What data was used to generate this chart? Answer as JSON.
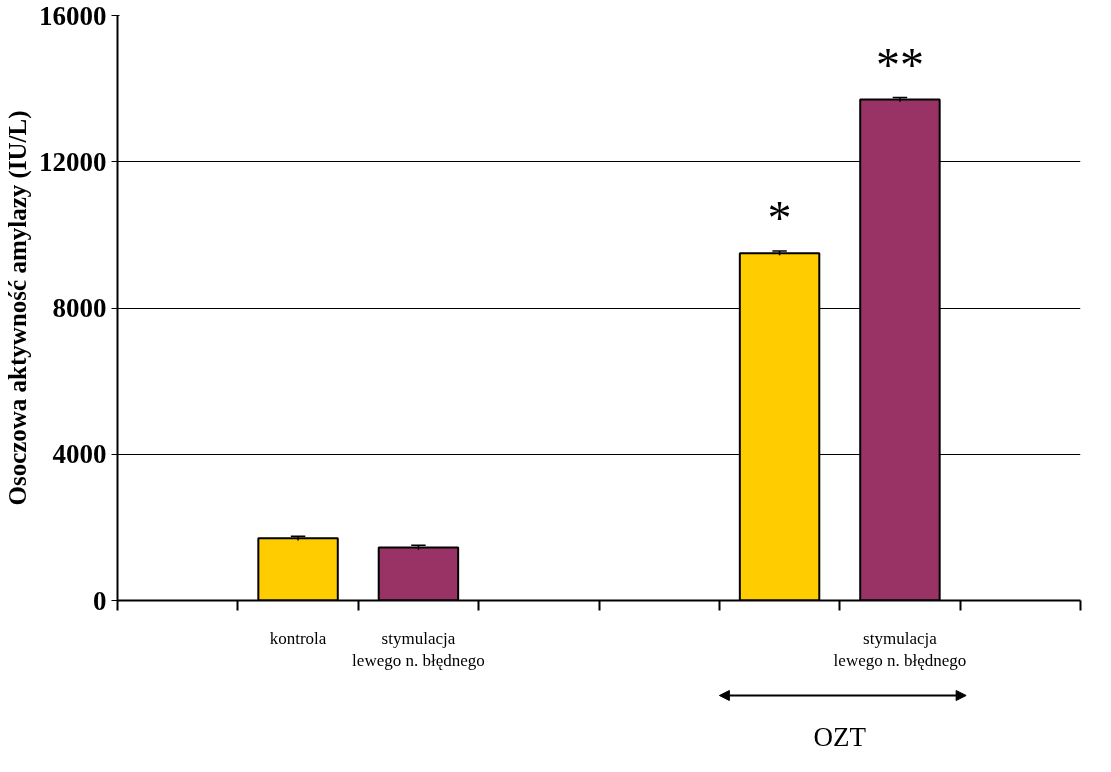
{
  "chart_data": {
    "type": "bar",
    "ylabel": "Osoczowa aktywność amylazy (IU/L)",
    "categories": [
      null,
      "kontrola",
      "stymulacja\nlewego n. błędnego",
      null,
      null,
      null,
      "stymulacja\nlewego n. błędnego",
      null
    ],
    "values": [
      null,
      1700,
      1450,
      null,
      null,
      9500,
      13700,
      null
    ],
    "colors": [
      "#ffcc00",
      "#ffcc00",
      "#993366",
      "#ffcc00",
      "#ffcc00",
      "#ffcc00",
      "#993366",
      "#ffcc00"
    ],
    "errors": [
      null,
      60,
      60,
      null,
      null,
      60,
      60,
      null
    ],
    "ylim": [
      0,
      16000
    ],
    "yticks": [
      0,
      4000,
      8000,
      12000,
      16000
    ],
    "grid": "y",
    "annotations": [
      {
        "text": "*",
        "y": 9500
      },
      {
        "text": "**",
        "y": 13700
      },
      "OZT"
    ]
  }
}
